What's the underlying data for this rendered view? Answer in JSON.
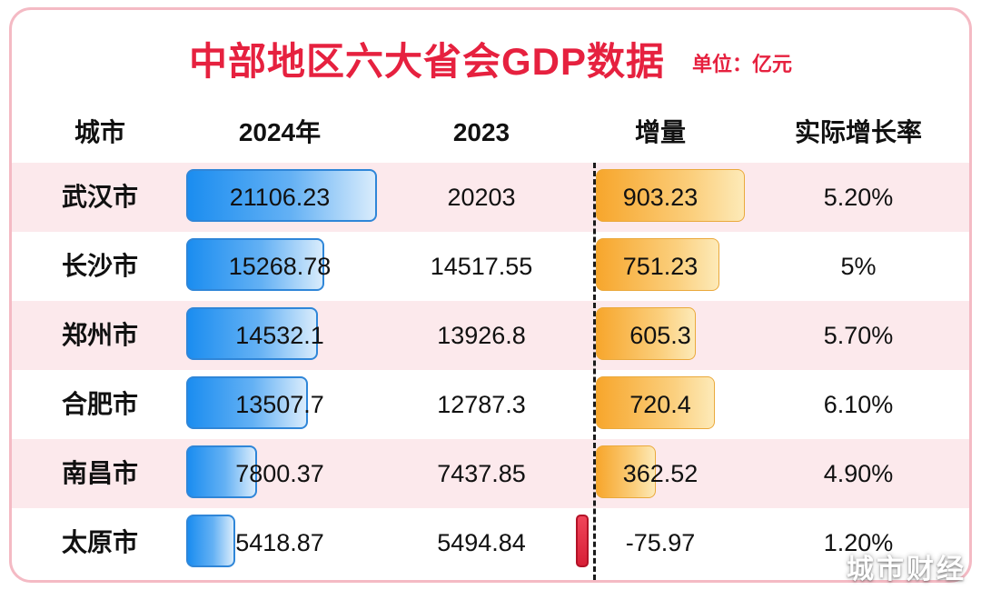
{
  "header": {
    "title": "中部地区六大省会GDP数据",
    "unit": "单位：亿元"
  },
  "columns": [
    "城市",
    "2024年",
    "2023",
    "增量",
    "实际增长率"
  ],
  "rows": [
    {
      "city": "武汉市",
      "gdp2024": "21106.23",
      "gdp2023": "20203",
      "increment": "903.23",
      "growth": "5.20%"
    },
    {
      "city": "长沙市",
      "gdp2024": "15268.78",
      "gdp2023": "14517.55",
      "increment": "751.23",
      "growth": "5%"
    },
    {
      "city": "郑州市",
      "gdp2024": "14532.1",
      "gdp2023": "13926.8",
      "increment": "605.3",
      "growth": "5.70%"
    },
    {
      "city": "合肥市",
      "gdp2024": "13507.7",
      "gdp2023": "12787.3",
      "increment": "720.4",
      "growth": "6.10%"
    },
    {
      "city": "南昌市",
      "gdp2024": "7800.37",
      "gdp2023": "7437.85",
      "increment": "362.52",
      "growth": "4.90%"
    },
    {
      "city": "太原市",
      "gdp2024": "5418.87",
      "gdp2023": "5494.84",
      "increment": "-75.97",
      "growth": "1.20%"
    }
  ],
  "watermark": "城市财经",
  "colors": {
    "title_red": "#e6213f",
    "row_pink": "#fce9ec",
    "bar_blue": "#1b8df0",
    "bar_blue_light": "#d9ecfc",
    "bar_orange": "#f7a62c",
    "bar_orange_light": "#fdeab8",
    "negative_red": "#d81f36",
    "card_border_pink": "#f4bac4"
  },
  "chart_data": {
    "type": "bar",
    "title": "中部地区六大省会GDP数据",
    "unit": "亿元",
    "categories": [
      "武汉市",
      "长沙市",
      "郑州市",
      "合肥市",
      "南昌市",
      "太原市"
    ],
    "series": [
      {
        "name": "2024年",
        "values": [
          21106.23,
          15268.78,
          14532.1,
          13507.7,
          7800.37,
          5418.87
        ]
      },
      {
        "name": "2023",
        "values": [
          20203,
          14517.55,
          13926.8,
          12787.3,
          7437.85,
          5494.84
        ]
      },
      {
        "name": "增量",
        "values": [
          903.23,
          751.23,
          605.3,
          720.4,
          362.52,
          -75.97
        ]
      }
    ],
    "growth_rates": [
      "5.20%",
      "5%",
      "5.70%",
      "6.10%",
      "4.90%",
      "1.20%"
    ],
    "layout": {
      "bars_in_table": true,
      "negative_axis_style": "black-dashed-vertical-line",
      "legend": "none"
    }
  }
}
